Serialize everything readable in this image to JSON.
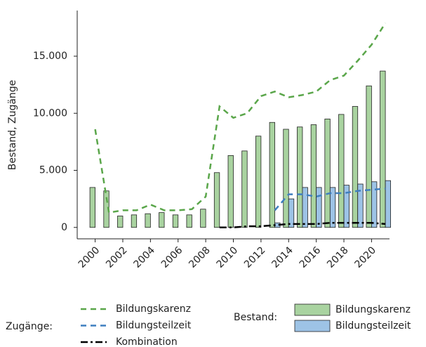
{
  "chart_data": {
    "type": "bar-line",
    "y_label": "Bestand, Zugänge",
    "x": [
      2000,
      2001,
      2002,
      2003,
      2004,
      2005,
      2006,
      2007,
      2008,
      2009,
      2010,
      2011,
      2012,
      2013,
      2014,
      2015,
      2016,
      2017,
      2018,
      2019,
      2020,
      2021
    ],
    "xlim": [
      1998.7,
      2021.3
    ],
    "xticks": [
      2000,
      2002,
      2004,
      2006,
      2008,
      2010,
      2012,
      2014,
      2016,
      2018,
      2020
    ],
    "ylim": [
      -1000,
      19000
    ],
    "yticks": [
      0,
      {
        "value": 5000,
        "label": "5.000"
      },
      {
        "value": 10000,
        "label": "10.000"
      },
      {
        "value": 15000,
        "label": "15.000"
      }
    ],
    "legend_groups": {
      "line": "Zugänge:",
      "bar": "Bestand:"
    },
    "series": [
      {
        "name": "Bildungskarenz",
        "kind": "bar",
        "color": "#a9d3a0",
        "values": [
          3500,
          3200,
          1000,
          1100,
          1200,
          1300,
          1100,
          1100,
          1600,
          4800,
          6300,
          6700,
          8000,
          9200,
          8600,
          8800,
          9000,
          9500,
          9900,
          10600,
          12400,
          13700
        ]
      },
      {
        "name": "Bildungsteilzeit",
        "kind": "bar",
        "color": "#9dc3e6",
        "values": [
          null,
          null,
          null,
          null,
          null,
          null,
          null,
          null,
          null,
          null,
          null,
          null,
          null,
          400,
          2500,
          3500,
          3500,
          3500,
          3700,
          3800,
          4000,
          4100
        ]
      },
      {
        "name": "Bildungskarenz",
        "kind": "line",
        "color": "#5aa64a",
        "dash": "8,6",
        "values": [
          8600,
          1300,
          1500,
          1500,
          2000,
          1500,
          1500,
          1600,
          2700,
          10600,
          9600,
          10000,
          11500,
          11900,
          11400,
          11600,
          11900,
          12900,
          13300,
          14600,
          16000,
          17900
        ]
      },
      {
        "name": "Bildungsteilzeit",
        "kind": "line",
        "color": "#3f7fbf",
        "dash": "8,6",
        "values": [
          null,
          null,
          null,
          null,
          null,
          null,
          null,
          null,
          null,
          null,
          null,
          null,
          null,
          1500,
          2900,
          2900,
          2700,
          3000,
          3000,
          3200,
          3300,
          3400
        ]
      },
      {
        "name": "Kombination",
        "kind": "line",
        "color": "#000000",
        "dash": "10,4,3,4",
        "values": [
          null,
          null,
          null,
          null,
          null,
          null,
          null,
          null,
          null,
          0,
          0,
          100,
          100,
          200,
          300,
          300,
          300,
          400,
          400,
          400,
          400,
          300
        ]
      }
    ]
  }
}
